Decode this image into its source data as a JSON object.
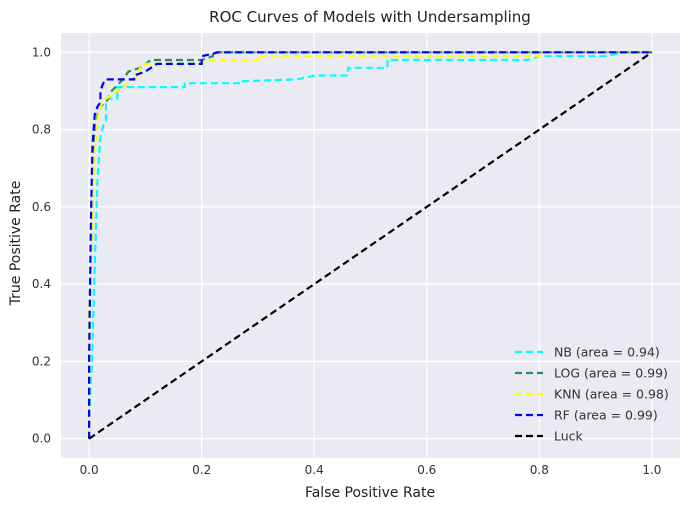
{
  "chart_data": {
    "type": "line",
    "title": "ROC Curves of Models with Undersampling",
    "xlabel": "False Positive Rate",
    "ylabel": "True Positive Rate",
    "xlim": [
      -0.05,
      1.05
    ],
    "ylim": [
      -0.05,
      1.05
    ],
    "xticks": [
      "0.0",
      "0.2",
      "0.4",
      "0.6",
      "0.8",
      "1.0"
    ],
    "yticks": [
      "0.0",
      "0.2",
      "0.4",
      "0.6",
      "0.8",
      "1.0"
    ],
    "grid": true,
    "legend_position": "lower-right",
    "background": "#eaeaf2",
    "series": [
      {
        "name": "NB (area = 0.94)",
        "color": "#00ffff",
        "style": "dashed",
        "points": [
          [
            0,
            0
          ],
          [
            0,
            0.05
          ],
          [
            0.005,
            0.2
          ],
          [
            0.01,
            0.45
          ],
          [
            0.015,
            0.68
          ],
          [
            0.02,
            0.78
          ],
          [
            0.025,
            0.81
          ],
          [
            0.03,
            0.82
          ],
          [
            0.03,
            0.88
          ],
          [
            0.05,
            0.88
          ],
          [
            0.05,
            0.91
          ],
          [
            0.17,
            0.91
          ],
          [
            0.17,
            0.92
          ],
          [
            0.27,
            0.92
          ],
          [
            0.27,
            0.925
          ],
          [
            0.37,
            0.93
          ],
          [
            0.4,
            0.94
          ],
          [
            0.46,
            0.94
          ],
          [
            0.46,
            0.96
          ],
          [
            0.53,
            0.96
          ],
          [
            0.53,
            0.98
          ],
          [
            0.78,
            0.98
          ],
          [
            0.8,
            0.99
          ],
          [
            0.92,
            0.99
          ],
          [
            0.95,
            1.0
          ],
          [
            1.0,
            1.0
          ]
        ]
      },
      {
        "name": "LOG (area = 0.99)",
        "color": "#2e8b57",
        "style": "dashed",
        "points": [
          [
            0,
            0
          ],
          [
            0,
            0.3
          ],
          [
            0.005,
            0.55
          ],
          [
            0.01,
            0.78
          ],
          [
            0.015,
            0.84
          ],
          [
            0.02,
            0.86
          ],
          [
            0.03,
            0.87
          ],
          [
            0.04,
            0.9
          ],
          [
            0.06,
            0.93
          ],
          [
            0.07,
            0.95
          ],
          [
            0.09,
            0.96
          ],
          [
            0.11,
            0.98
          ],
          [
            0.2,
            0.98
          ],
          [
            0.22,
            0.99
          ],
          [
            0.22,
            1.0
          ],
          [
            1.0,
            1.0
          ]
        ]
      },
      {
        "name": "KNN (area = 0.98)",
        "color": "#ffff00",
        "style": "dashed",
        "points": [
          [
            0,
            0
          ],
          [
            0,
            0.3
          ],
          [
            0.005,
            0.55
          ],
          [
            0.01,
            0.74
          ],
          [
            0.015,
            0.83
          ],
          [
            0.02,
            0.86
          ],
          [
            0.03,
            0.88
          ],
          [
            0.04,
            0.89
          ],
          [
            0.06,
            0.91
          ],
          [
            0.09,
            0.94
          ],
          [
            0.09,
            0.96
          ],
          [
            0.1,
            0.97
          ],
          [
            0.2,
            0.97
          ],
          [
            0.22,
            0.98
          ],
          [
            0.3,
            0.98
          ],
          [
            0.3,
            0.99
          ],
          [
            0.8,
            0.99
          ],
          [
            0.8,
            1.0
          ],
          [
            1.0,
            1.0
          ]
        ]
      },
      {
        "name": "RF (area = 0.99)",
        "color": "#0000ff",
        "style": "dashed",
        "points": [
          [
            0,
            0
          ],
          [
            0,
            0.2
          ],
          [
            0.003,
            0.55
          ],
          [
            0.006,
            0.76
          ],
          [
            0.01,
            0.84
          ],
          [
            0.015,
            0.86
          ],
          [
            0.02,
            0.87
          ],
          [
            0.02,
            0.9
          ],
          [
            0.025,
            0.92
          ],
          [
            0.03,
            0.93
          ],
          [
            0.08,
            0.93
          ],
          [
            0.08,
            0.94
          ],
          [
            0.1,
            0.95
          ],
          [
            0.11,
            0.96
          ],
          [
            0.12,
            0.97
          ],
          [
            0.2,
            0.97
          ],
          [
            0.2,
            0.99
          ],
          [
            0.23,
            1.0
          ],
          [
            1.0,
            1.0
          ]
        ]
      },
      {
        "name": "Luck",
        "color": "#000000",
        "style": "dashed",
        "points": [
          [
            0,
            0
          ],
          [
            1.0,
            1.0
          ]
        ]
      }
    ]
  }
}
